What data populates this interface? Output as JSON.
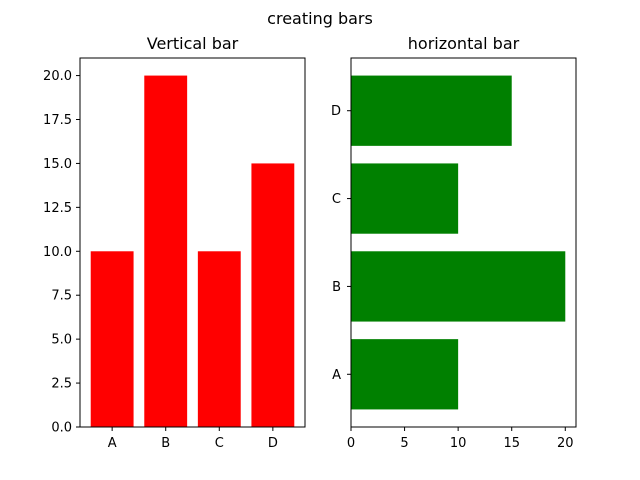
{
  "figure": {
    "suptitle": "creating bars"
  },
  "chart_data": [
    {
      "type": "bar",
      "orientation": "vertical",
      "title": "Vertical bar",
      "categories": [
        "A",
        "B",
        "C",
        "D"
      ],
      "values": [
        10,
        20,
        10,
        15
      ],
      "color": "#ff0000",
      "ylim": [
        0,
        21
      ],
      "yticks": [
        "0.0",
        "2.5",
        "5.0",
        "7.5",
        "10.0",
        "12.5",
        "15.0",
        "17.5",
        "20.0"
      ],
      "xlabel": "",
      "ylabel": "",
      "grid": false
    },
    {
      "type": "bar",
      "orientation": "horizontal",
      "title": "horizontal bar",
      "categories": [
        "A",
        "B",
        "C",
        "D"
      ],
      "values": [
        10,
        20,
        10,
        15
      ],
      "color": "#008000",
      "xlim": [
        0,
        21
      ],
      "xticks": [
        "0",
        "5",
        "10",
        "15",
        "20"
      ],
      "xlabel": "",
      "ylabel": "",
      "grid": false
    }
  ]
}
